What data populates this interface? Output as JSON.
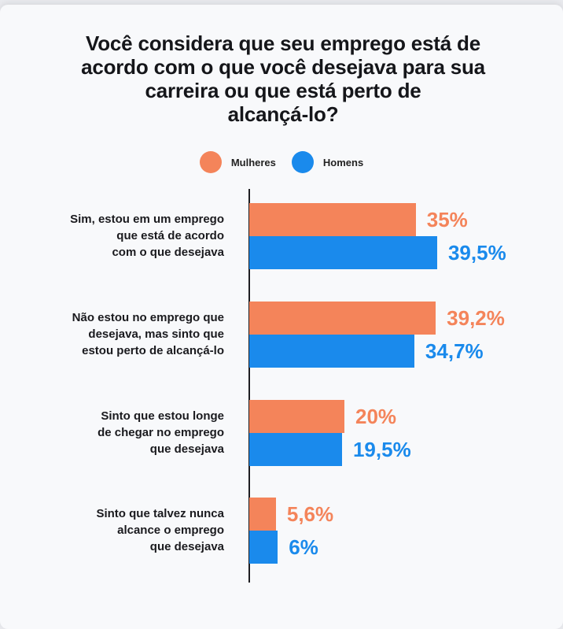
{
  "chart_data": {
    "type": "bar",
    "orientation": "horizontal",
    "title": "Você considera que seu emprego está de acordo com o que você desejava para sua carreira ou que está perto de alcançá-lo?",
    "categories": [
      "Sim, estou em um emprego que está de acordo com o que desejava",
      "Não estou no emprego que desejava, mas sinto que estou perto de alcançá-lo",
      "Sinto que estou longe de chegar no emprego que desejava",
      "Sinto que talvez nunca alcance o emprego que desejava"
    ],
    "series": [
      {
        "name": "Mulheres",
        "color": "#f4845a",
        "values": [
          35,
          39.2,
          20,
          5.6
        ],
        "labels": [
          "35%",
          "39,2%",
          "20%",
          "5,6%"
        ]
      },
      {
        "name": "Homens",
        "color": "#1a8aec",
        "values": [
          39.5,
          34.7,
          19.5,
          6
        ],
        "labels": [
          "39,5%",
          "34,7%",
          "19,5%",
          "6%"
        ]
      }
    ],
    "xlabel": "",
    "ylabel": "",
    "grid": false,
    "legend_position": "top",
    "unit": "%"
  },
  "title_lines": [
    "Você considera que seu emprego está de",
    "acordo com o que você desejava para sua",
    "carreira ou que está perto de",
    "alcançá-lo?"
  ],
  "legend": [
    {
      "label": "Mulheres",
      "color": "#f4845a"
    },
    {
      "label": "Homens",
      "color": "#1a8aec"
    }
  ],
  "category_lines": [
    [
      "Sim, estou em um emprego",
      "que está de acordo",
      "com o que desejava"
    ],
    [
      "Não estou no emprego que",
      "desejava, mas sinto que",
      "estou perto de alcançá-lo"
    ],
    [
      "Sinto que estou longe",
      "de chegar no emprego",
      "que desejava"
    ],
    [
      "Sinto que talvez nunca",
      "alcance o emprego",
      "que desejava"
    ]
  ]
}
